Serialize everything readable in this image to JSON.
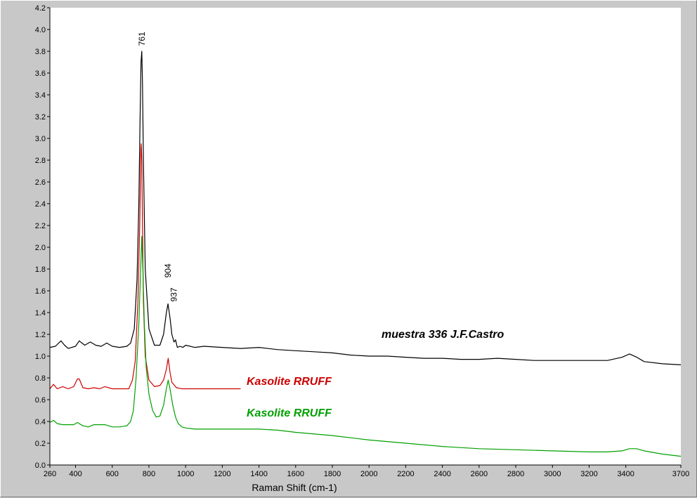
{
  "chart_data": {
    "type": "line",
    "title": "",
    "xlabel": "Raman Shift (cm-1)",
    "ylabel": "",
    "xlim": [
      260,
      3700
    ],
    "ylim": [
      0.0,
      4.2
    ],
    "grid": false,
    "x_ticks": [
      260,
      400,
      600,
      800,
      1000,
      1200,
      1400,
      1600,
      1800,
      2000,
      2200,
      2400,
      2600,
      2800,
      3000,
      3200,
      3400,
      3700
    ],
    "y_ticks": [
      0.0,
      0.2,
      0.4,
      0.6,
      0.8,
      1.0,
      1.2,
      1.4,
      1.6,
      1.8,
      2.0,
      2.2,
      2.4,
      2.6,
      2.8,
      3.0,
      3.2,
      3.4,
      3.6,
      3.8,
      4.0,
      4.2
    ],
    "annotations": [
      {
        "text": "761",
        "x": 761,
        "y": 3.85
      },
      {
        "text": "904",
        "x": 904,
        "y": 1.72
      },
      {
        "text": "937",
        "x": 937,
        "y": 1.5
      }
    ],
    "series": [
      {
        "name": "muestra 336 J.F.Castro",
        "color": "#000000",
        "x": [
          260,
          290,
          320,
          340,
          360,
          400,
          420,
          450,
          480,
          510,
          540,
          570,
          600,
          640,
          680,
          700,
          720,
          735,
          745,
          752,
          757,
          761,
          765,
          770,
          780,
          800,
          830,
          860,
          880,
          895,
          904,
          915,
          925,
          937,
          945,
          955,
          970,
          985,
          1000,
          1050,
          1100,
          1200,
          1300,
          1400,
          1500,
          1600,
          1700,
          1800,
          1900,
          2000,
          2100,
          2200,
          2300,
          2400,
          2500,
          2600,
          2700,
          2800,
          2900,
          3000,
          3100,
          3200,
          3300,
          3380,
          3420,
          3460,
          3500,
          3600,
          3700
        ],
        "y": [
          1.08,
          1.09,
          1.14,
          1.1,
          1.07,
          1.09,
          1.14,
          1.1,
          1.13,
          1.1,
          1.09,
          1.12,
          1.09,
          1.08,
          1.09,
          1.12,
          1.25,
          1.7,
          2.4,
          3.2,
          3.7,
          3.8,
          3.5,
          2.8,
          1.8,
          1.25,
          1.1,
          1.1,
          1.2,
          1.4,
          1.48,
          1.35,
          1.2,
          1.13,
          1.15,
          1.08,
          1.09,
          1.08,
          1.1,
          1.08,
          1.09,
          1.08,
          1.07,
          1.08,
          1.06,
          1.05,
          1.04,
          1.03,
          1.01,
          1.0,
          1.0,
          0.99,
          0.98,
          0.98,
          0.97,
          0.97,
          0.98,
          0.97,
          0.96,
          0.96,
          0.96,
          0.96,
          0.96,
          0.99,
          1.02,
          0.99,
          0.95,
          0.93,
          0.92
        ]
      },
      {
        "name": "Kasolite RRUFF",
        "color": "#cc0000",
        "x": [
          260,
          280,
          300,
          330,
          360,
          390,
          410,
          420,
          440,
          470,
          500,
          530,
          560,
          600,
          650,
          690,
          710,
          725,
          740,
          750,
          756,
          758,
          761,
          765,
          770,
          780,
          800,
          830,
          860,
          880,
          895,
          905,
          915,
          925,
          935,
          950,
          980,
          1000,
          1100,
          1200,
          1300
        ],
        "y": [
          0.7,
          0.74,
          0.7,
          0.72,
          0.7,
          0.72,
          0.79,
          0.79,
          0.71,
          0.7,
          0.71,
          0.7,
          0.72,
          0.7,
          0.7,
          0.7,
          0.78,
          0.95,
          1.5,
          2.2,
          2.9,
          2.95,
          2.8,
          2.2,
          1.5,
          1.0,
          0.78,
          0.72,
          0.73,
          0.78,
          0.88,
          0.98,
          0.85,
          0.76,
          0.74,
          0.71,
          0.7,
          0.7,
          0.7,
          0.7,
          0.7
        ]
      },
      {
        "name": "Kasolite RRUFF",
        "color": "#00a000",
        "x": [
          260,
          280,
          300,
          330,
          360,
          390,
          410,
          420,
          440,
          470,
          500,
          530,
          560,
          600,
          640,
          680,
          700,
          715,
          730,
          745,
          755,
          761,
          768,
          775,
          785,
          800,
          820,
          840,
          860,
          880,
          895,
          905,
          915,
          930,
          945,
          960,
          980,
          1000,
          1050,
          1100,
          1200,
          1300,
          1400,
          1500,
          1600,
          1800,
          2000,
          2200,
          2400,
          2600,
          2800,
          3000,
          3200,
          3300,
          3380,
          3420,
          3460,
          3500,
          3600,
          3700
        ],
        "y": [
          0.39,
          0.41,
          0.38,
          0.37,
          0.37,
          0.37,
          0.39,
          0.38,
          0.36,
          0.35,
          0.37,
          0.37,
          0.37,
          0.35,
          0.35,
          0.36,
          0.4,
          0.5,
          0.8,
          1.3,
          1.8,
          2.1,
          1.75,
          1.3,
          0.9,
          0.65,
          0.5,
          0.44,
          0.45,
          0.55,
          0.7,
          0.78,
          0.7,
          0.55,
          0.44,
          0.38,
          0.35,
          0.34,
          0.33,
          0.33,
          0.33,
          0.33,
          0.33,
          0.32,
          0.3,
          0.27,
          0.23,
          0.2,
          0.17,
          0.15,
          0.14,
          0.13,
          0.12,
          0.12,
          0.13,
          0.15,
          0.15,
          0.13,
          0.1,
          0.08
        ]
      }
    ],
    "series_labels": [
      {
        "text": "muestra 336 J.F.Castro",
        "color": "#000000"
      },
      {
        "text": "Kasolite RRUFF",
        "color": "#cc0000"
      },
      {
        "text": "Kasolite RRUFF",
        "color": "#00a000"
      }
    ]
  }
}
